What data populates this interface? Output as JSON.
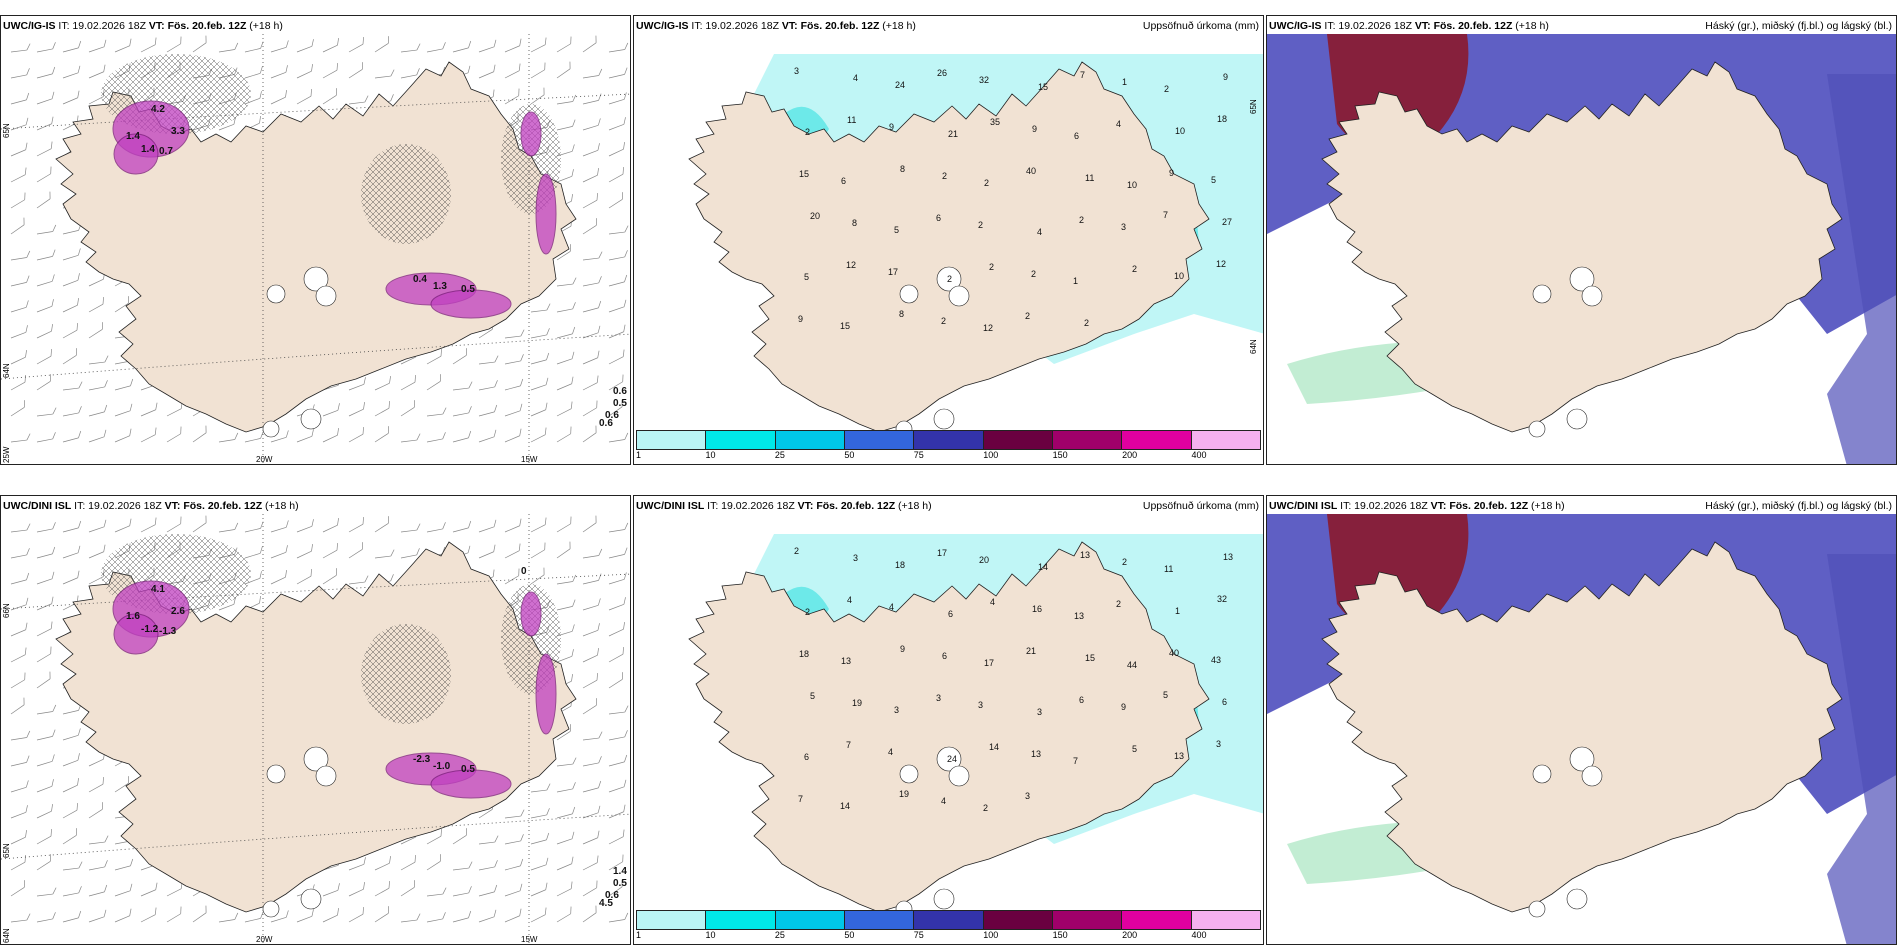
{
  "panels": [
    {
      "id": "p1",
      "header_model": "UWC/IG-IS",
      "header_it": "IT: 19.02.2026 18Z",
      "header_vt_label": "VT:",
      "header_vt": "Fös. 20.feb. 12Z",
      "header_offset": "(+18 h)",
      "right_title": "",
      "lat_labels": [
        "65N",
        "64N",
        "25W"
      ],
      "lon_labels": [
        "20W",
        "15W"
      ],
      "value_labels": [
        "4.2",
        "3.3",
        "1.4",
        "1.4",
        "0.7",
        "0.4",
        "1.3",
        "0.5",
        "0.6",
        "0.5",
        "0.6",
        "0.6"
      ]
    },
    {
      "id": "p2",
      "header_model": "UWC/IG-IS",
      "header_it": "IT: 19.02.2026 18Z",
      "header_vt_label": "VT:",
      "header_vt": "Fös. 20.feb. 12Z",
      "header_offset": "(+18 h)",
      "right_title": "Uppsöfnuð úrkoma (mm)",
      "lat_labels": [
        "65N",
        "64N"
      ],
      "lon_labels": [],
      "value_labels": [
        "3",
        "4",
        "24",
        "26",
        "32",
        "15",
        "7",
        "1",
        "2",
        "9",
        "2",
        "11",
        "9",
        "21",
        "35",
        "9",
        "6",
        "4",
        "10",
        "18",
        "15",
        "6",
        "8",
        "2",
        "2",
        "40",
        "11",
        "10",
        "9",
        "5",
        "20",
        "8",
        "5",
        "6",
        "2",
        "4",
        "2",
        "3",
        "7",
        "27",
        "5",
        "12",
        "17",
        "2",
        "2",
        "2",
        "1",
        "2",
        "10",
        "12",
        "9",
        "15",
        "8",
        "2",
        "12",
        "2",
        "2"
      ]
    },
    {
      "id": "p3",
      "header_model": "UWC/IG-IS",
      "header_it": "IT: 19.02.2026 18Z",
      "header_vt_label": "VT:",
      "header_vt": "Fös. 20.feb. 12Z",
      "header_offset": "(+18 h)",
      "right_title": "Háský (gr.), miðský (fj.bl.) og lágský (bl.)",
      "lat_labels": [],
      "lon_labels": [],
      "value_labels": []
    },
    {
      "id": "p4",
      "header_model": "UWC/DINI ISL",
      "header_it": "IT: 19.02.2026 18Z",
      "header_vt_label": "VT:",
      "header_vt": "Fös. 20.feb. 12Z",
      "header_offset": "(+18 h)",
      "right_title": "",
      "lat_labels": [
        "66N",
        "65N",
        "64N",
        "25W"
      ],
      "lon_labels": [
        "20W",
        "15W"
      ],
      "value_labels": [
        "4.1",
        "2.6",
        "1.6",
        "-1.2",
        "-1.3",
        "-2.3",
        "-1.0",
        "0.5",
        "1.4",
        "0.5",
        "0.6",
        "4.5",
        "0"
      ]
    },
    {
      "id": "p5",
      "header_model": "UWC/DINI ISL",
      "header_it": "IT: 19.02.2026 18Z",
      "header_vt_label": "VT:",
      "header_vt": "Fös. 20.feb. 12Z",
      "header_offset": "(+18 h)",
      "right_title": "Uppsöfnuð úrkoma (mm)",
      "lat_labels": [],
      "lon_labels": [],
      "value_labels": [
        "2",
        "3",
        "18",
        "17",
        "20",
        "14",
        "13",
        "2",
        "11",
        "13",
        "2",
        "4",
        "4",
        "6",
        "4",
        "16",
        "13",
        "2",
        "1",
        "32",
        "18",
        "13",
        "9",
        "6",
        "17",
        "21",
        "15",
        "44",
        "40",
        "43",
        "5",
        "19",
        "3",
        "3",
        "3",
        "3",
        "6",
        "9",
        "5",
        "6",
        "6",
        "7",
        "4",
        "24",
        "14",
        "13",
        "7",
        "5",
        "13",
        "3",
        "7",
        "14",
        "19",
        "4",
        "2",
        "3"
      ]
    },
    {
      "id": "p6",
      "header_model": "UWC/DINI ISL",
      "header_it": "IT: 19.02.2026 18Z",
      "header_vt_label": "VT:",
      "header_vt": "Fös. 20.feb. 12Z",
      "header_offset": "(+18 h)",
      "right_title": "Háský (gr.), miðský (fj.bl.) og lágský (bl.)",
      "lat_labels": [],
      "lon_labels": [],
      "value_labels": []
    }
  ],
  "colorbar": {
    "labels": [
      "1",
      "10",
      "25",
      "50",
      "75",
      "100",
      "150",
      "200",
      "400"
    ],
    "colors": [
      "#b9f5f5",
      "#00e8e8",
      "#00c8e8",
      "#3366dd",
      "#3333aa",
      "#6a0040",
      "#a0006a",
      "#e000a0",
      "#f5b0f0"
    ]
  },
  "colors": {
    "land": "#f1e2d3",
    "precip_light": "#b9f5f5",
    "precip_mid": "#5ee6e6",
    "cloud_high": "#8b1a2e",
    "cloud_mid": "#5050b8",
    "cloud_low": "#2a2ab0",
    "snow": "#c040c0"
  }
}
